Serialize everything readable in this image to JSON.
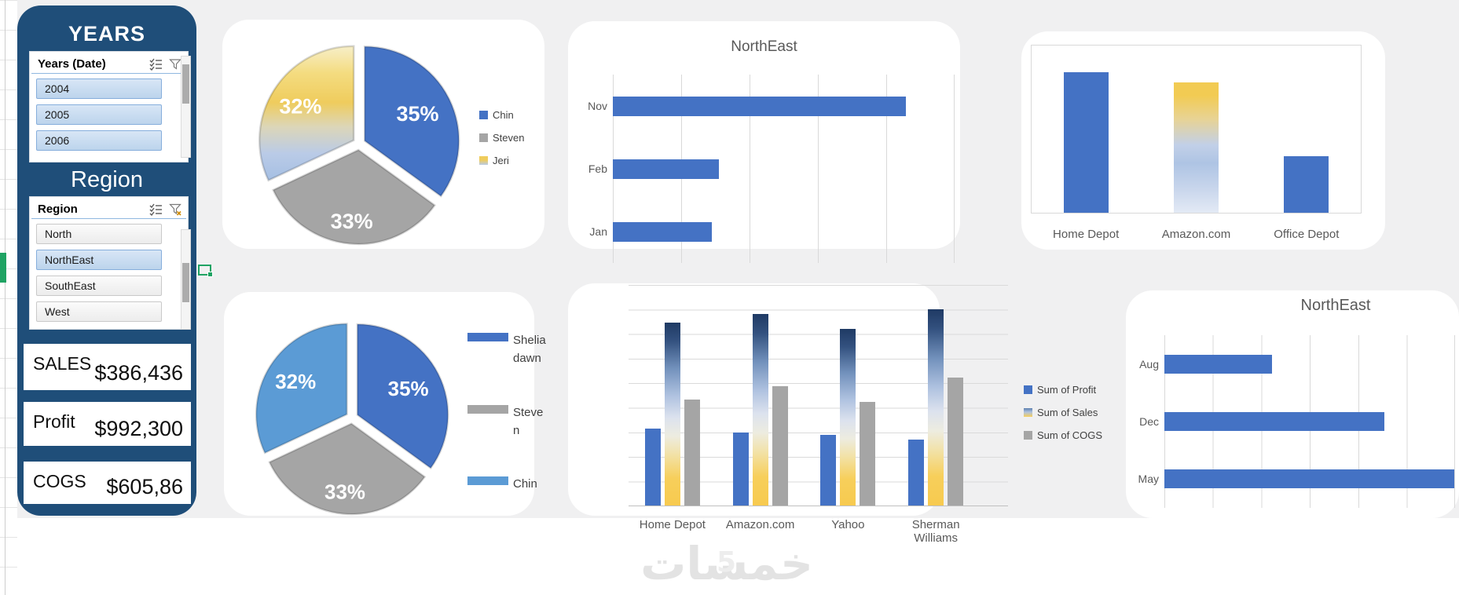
{
  "dashboard": {
    "watermark_text": "خمسات",
    "watermark_digit": "5"
  },
  "slicer_panel": {
    "years_header": "YEARS",
    "years_slicer": {
      "title": "Years (Date)",
      "items": [
        {
          "label": "2004",
          "selected": true
        },
        {
          "label": "2005",
          "selected": true
        },
        {
          "label": "2006",
          "selected": true
        }
      ]
    },
    "region_header": "Region",
    "region_slicer": {
      "title": "Region",
      "items": [
        {
          "label": "North",
          "selected": false
        },
        {
          "label": "NorthEast",
          "selected": true
        },
        {
          "label": "SouthEast",
          "selected": false
        },
        {
          "label": "West",
          "selected": false
        }
      ]
    },
    "kpis": [
      {
        "label": "SALES",
        "value": "$386,436"
      },
      {
        "label": "Profit",
        "value": "$992,300"
      },
      {
        "label": "COGS",
        "value": "$605,86"
      }
    ]
  },
  "chart_data": [
    {
      "id": "pie_top",
      "type": "pie",
      "title": "",
      "values": [
        35,
        33,
        32
      ],
      "labels": [
        "35%",
        "33%",
        "32%"
      ],
      "legend": [
        "Chin",
        "Steven",
        "Jeri"
      ],
      "slice_colors": [
        "blue",
        "gray",
        "gold_blue_gradient"
      ],
      "legend_colors": [
        "blue",
        "gray",
        "gold_blue_gradient"
      ],
      "legend_position": "right"
    },
    {
      "id": "bar_top_center",
      "type": "bar",
      "orientation": "horizontal",
      "title": "NorthEast",
      "categories": [
        "Nov",
        "Feb",
        "Jan"
      ],
      "values_pct_of_axis": [
        86,
        31,
        29
      ],
      "bar_color": "blue",
      "grid": "vertical",
      "gridline_count": 6
    },
    {
      "id": "column_top_right",
      "type": "bar",
      "orientation": "vertical",
      "title": "",
      "categories": [
        "Home Depot",
        "Amazon.com",
        "Office Depot"
      ],
      "values_pct_of_axis": [
        84,
        78,
        34
      ],
      "bar_colors": [
        "blue",
        "gold_fade_gradient",
        "blue"
      ]
    },
    {
      "id": "pie_bottom",
      "type": "pie",
      "title": "",
      "values": [
        35,
        33,
        32
      ],
      "labels": [
        "35%",
        "33%",
        "32%"
      ],
      "legend": [
        "Shelia dawn",
        "Steve n",
        "Chin"
      ],
      "slice_colors": [
        "blue",
        "gray",
        "lightblue"
      ],
      "legend_colors": [
        "blue",
        "gray",
        "lightblue"
      ],
      "legend_position": "right"
    },
    {
      "id": "cluster_bottom_center",
      "type": "bar",
      "orientation": "vertical",
      "grouped": true,
      "title": "",
      "categories": [
        "Home Depot",
        "Amazon.com",
        "Yahoo",
        "Sherman Williams"
      ],
      "series": [
        {
          "name": "Sum of Profit",
          "color": "blue",
          "values_pct_of_axis": [
            35,
            33,
            32,
            30
          ]
        },
        {
          "name": "Sum of Sales",
          "color": "navy_gold_gradient",
          "values_pct_of_axis": [
            83,
            87,
            80,
            89
          ]
        },
        {
          "name": "Sum of COGS",
          "color": "gray",
          "values_pct_of_axis": [
            48,
            54,
            47,
            58
          ]
        }
      ],
      "grid": "horizontal",
      "legend_position": "right"
    },
    {
      "id": "bar_bottom_right",
      "type": "bar",
      "orientation": "horizontal",
      "title": "NorthEast",
      "categories": [
        "Aug",
        "Dec",
        "May"
      ],
      "values_pct_of_axis": [
        37,
        76,
        101
      ],
      "bar_color": "blue",
      "grid": "vertical",
      "gridline_count": 7
    }
  ],
  "colors": {
    "panel_navy": "#1F4E79",
    "blue": "#4472C4",
    "gray": "#A5A5A5",
    "light_blue": "#5B9BD5",
    "gold": "#F5CE5E",
    "title_gray": "#595959",
    "gridline": "#D9D9D9",
    "canvas_gray": "#F0F0F1",
    "selection_green": "#1FA363",
    "watermark_gray": "#E3E3E3"
  }
}
